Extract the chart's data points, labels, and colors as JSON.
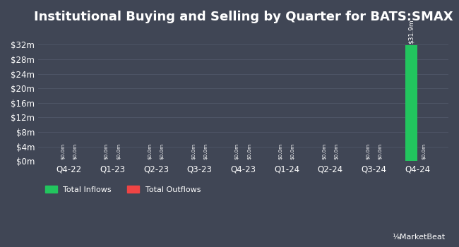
{
  "title": "Institutional Buying and Selling by Quarter for BATS:SMAX",
  "quarters": [
    "Q4-22",
    "Q1-23",
    "Q2-23",
    "Q3-23",
    "Q4-23",
    "Q1-24",
    "Q2-24",
    "Q3-24",
    "Q4-24"
  ],
  "inflows": [
    0.0,
    0.0,
    0.0,
    0.0,
    0.0,
    0.0,
    0.0,
    0.0,
    31900000
  ],
  "outflows": [
    0.0,
    0.0,
    0.0,
    0.0,
    0.0,
    0.0,
    0.0,
    0.0,
    0.0
  ],
  "bar_width": 0.28,
  "inflow_color": "#22c55e",
  "outflow_color": "#ef4444",
  "background_color": "#404655",
  "plot_bg_color": "#404655",
  "text_color": "#ffffff",
  "grid_color": "#4e5566",
  "ylim": [
    0,
    36000000
  ],
  "ytick_values": [
    0,
    4000000,
    8000000,
    12000000,
    16000000,
    20000000,
    24000000,
    28000000,
    32000000
  ],
  "ytick_labels": [
    "$0m",
    "$4m",
    "$8m",
    "$12m",
    "$16m",
    "$20m",
    "$24m",
    "$28m",
    "$32m"
  ],
  "legend_inflow": "Total Inflows",
  "legend_outflow": "Total Outflows",
  "bar_label_inflow": "$31.9m",
  "title_fontsize": 13,
  "axis_fontsize": 8.5,
  "label_fontsize": 6.5
}
